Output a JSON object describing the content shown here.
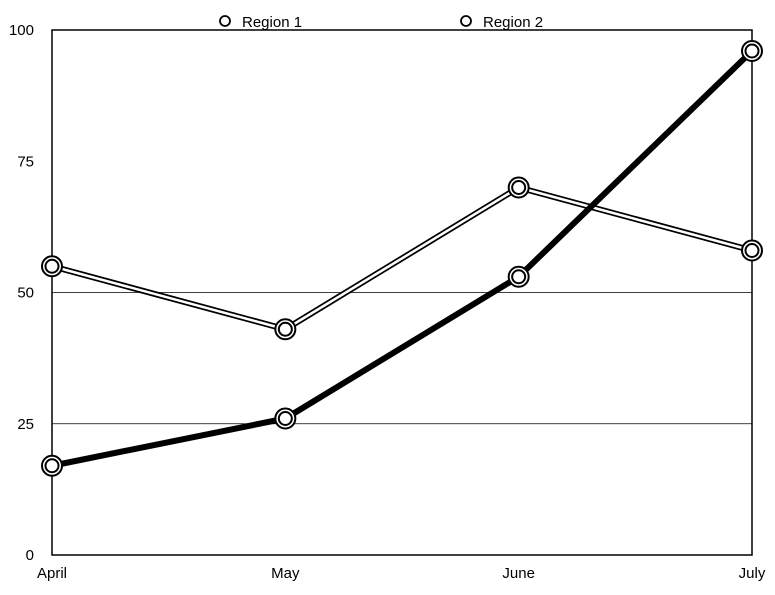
{
  "chart_data": {
    "type": "line",
    "title": "",
    "xlabel": "",
    "ylabel": "",
    "categories": [
      "April",
      "May",
      "June",
      "July"
    ],
    "ylim": [
      0,
      100
    ],
    "yticks": [
      0,
      25,
      50,
      75,
      100
    ],
    "gridlines_y": [
      25,
      50
    ],
    "legend_position": "top",
    "series": [
      {
        "name": "Region 1",
        "values": [
          55,
          43,
          70,
          58
        ],
        "color": "#000000",
        "style": "outline"
      },
      {
        "name": "Region 2",
        "values": [
          17,
          26,
          53,
          96
        ],
        "color": "#000000",
        "style": "thick"
      }
    ]
  }
}
